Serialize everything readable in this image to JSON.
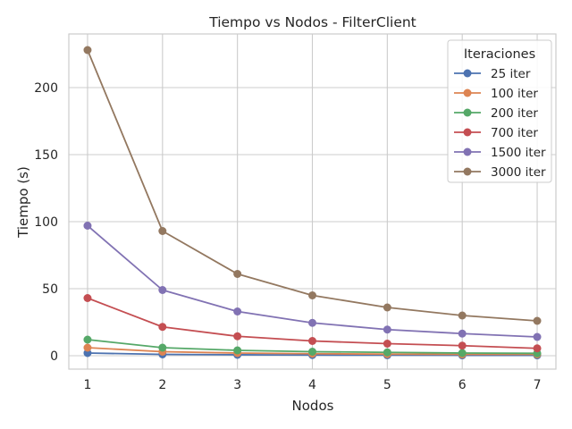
{
  "chart_data": {
    "type": "line",
    "title": "Tiempo vs Nodos - FilterClient",
    "xlabel": "Nodos",
    "ylabel": "Tiempo (s)",
    "x": [
      1,
      2,
      3,
      4,
      5,
      6,
      7
    ],
    "xticks": [
      "1",
      "2",
      "3",
      "4",
      "5",
      "6",
      "7"
    ],
    "yticks": [
      "0",
      "50",
      "100",
      "150",
      "200"
    ],
    "xlim": [
      0.75,
      7.25
    ],
    "ylim": [
      -10,
      240
    ],
    "grid": true,
    "legend_title": "Iteraciones",
    "legend_position": "top-right",
    "series": [
      {
        "name": "25 iter",
        "color": "#4c72b0",
        "values": [
          2,
          1,
          0.7,
          0.5,
          0.4,
          0.3,
          0.3
        ]
      },
      {
        "name": "100 iter",
        "color": "#dd8452",
        "values": [
          6,
          3,
          2,
          1.5,
          1.2,
          1,
          1
        ]
      },
      {
        "name": "200 iter",
        "color": "#55a868",
        "values": [
          12,
          6,
          4,
          3,
          2.5,
          2,
          1.8
        ]
      },
      {
        "name": "700 iter",
        "color": "#c44e52",
        "values": [
          43,
          21.5,
          14.5,
          11,
          9,
          7.5,
          5.5
        ]
      },
      {
        "name": "1500 iter",
        "color": "#8172b3",
        "values": [
          97,
          49,
          33,
          24.5,
          19.5,
          16.5,
          14
        ]
      },
      {
        "name": "3000 iter",
        "color": "#937860",
        "values": [
          228,
          93,
          61,
          45,
          36,
          30,
          26
        ]
      }
    ]
  }
}
